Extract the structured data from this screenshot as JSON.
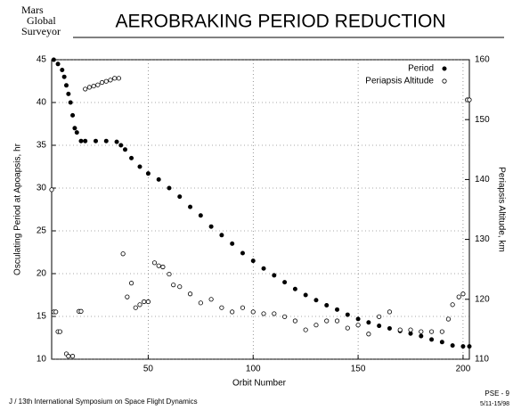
{
  "logo": [
    "Mars",
    "Global",
    "Surveyor"
  ],
  "footer": {
    "left": "J / 13th International Symposium on Space Flight Dynamics",
    "page": "PSE - 9",
    "date": "5/11-15/98"
  },
  "chart_data": {
    "type": "scatter",
    "title": "AEROBRAKING PERIOD REDUCTION",
    "xlabel": "Orbit Number",
    "ylabel": "Osculating Period at Apoapsis,  hr",
    "y2label": "Periapsis Altitude,  km",
    "xlim": [
      4,
      203
    ],
    "xticks": [
      50,
      100,
      150,
      200
    ],
    "ylim": [
      10,
      45
    ],
    "yticks": [
      10,
      15,
      20,
      25,
      30,
      35,
      40,
      45
    ],
    "y2lim": [
      110,
      160
    ],
    "y2ticks": [
      110,
      120,
      130,
      140,
      150,
      160
    ],
    "grid": true,
    "legend": "upper right",
    "series": [
      {
        "name": "Period",
        "color": "#000000",
        "marker": "filled",
        "x": [
          5,
          7,
          9,
          10,
          11,
          12,
          13,
          14,
          15,
          16,
          18,
          20,
          25,
          30,
          35,
          37,
          39,
          42,
          46,
          50,
          55,
          60,
          65,
          70,
          75,
          80,
          85,
          90,
          95,
          100,
          105,
          110,
          115,
          120,
          125,
          130,
          135,
          140,
          145,
          150,
          155,
          160,
          165,
          170,
          175,
          180,
          185,
          190,
          195,
          200,
          203
        ],
        "values": [
          45,
          44.5,
          43.8,
          43,
          42,
          41,
          40,
          38.5,
          37,
          36.5,
          35.5,
          35.5,
          35.5,
          35.5,
          35.4,
          35,
          34.5,
          33.5,
          32.5,
          31.7,
          31,
          30,
          29,
          27.8,
          26.8,
          25.5,
          24.5,
          23.5,
          22.4,
          21.5,
          20.6,
          19.8,
          19,
          18.2,
          17.5,
          16.9,
          16.3,
          15.8,
          15.2,
          14.7,
          14.3,
          13.9,
          13.6,
          13.3,
          13,
          12.7,
          12.3,
          12,
          11.6,
          11.5,
          11.5
        ]
      },
      {
        "name": "Periapsis Altitude",
        "color": "#000000",
        "marker": "open",
        "axis": "y2",
        "x": [
          4,
          5,
          6,
          7,
          8,
          11,
          12,
          14,
          17,
          18,
          20,
          22,
          24,
          26,
          28,
          30,
          32,
          34,
          36,
          38,
          40,
          42,
          44,
          46,
          48,
          50,
          53,
          55,
          57,
          60,
          62,
          65,
          70,
          75,
          80,
          85,
          90,
          95,
          100,
          105,
          110,
          115,
          120,
          125,
          130,
          135,
          140,
          145,
          150,
          155,
          160,
          165,
          170,
          175,
          180,
          185,
          190,
          193,
          195,
          198,
          200,
          202,
          203
        ],
        "values": [
          138.3,
          117.9,
          117.9,
          114.6,
          114.6,
          110.9,
          110.5,
          110.5,
          118,
          118,
          155.1,
          155.4,
          155.6,
          155.8,
          156.2,
          156.4,
          156.6,
          156.9,
          156.9,
          127.6,
          120.4,
          122.7,
          118.6,
          119.1,
          119.6,
          119.6,
          126.1,
          125.6,
          125.4,
          124.2,
          122.4,
          122.1,
          120.9,
          119.4,
          120,
          118.6,
          117.9,
          118.6,
          117.9,
          117.6,
          117.6,
          117.1,
          116.4,
          114.9,
          115.7,
          116.4,
          116.4,
          115.2,
          115.7,
          114.2,
          117.1,
          117.9,
          114.9,
          114.9,
          114.6,
          114.6,
          114.6,
          116.7,
          119.1,
          120.4,
          120.9,
          153.3,
          153.3
        ]
      }
    ]
  }
}
